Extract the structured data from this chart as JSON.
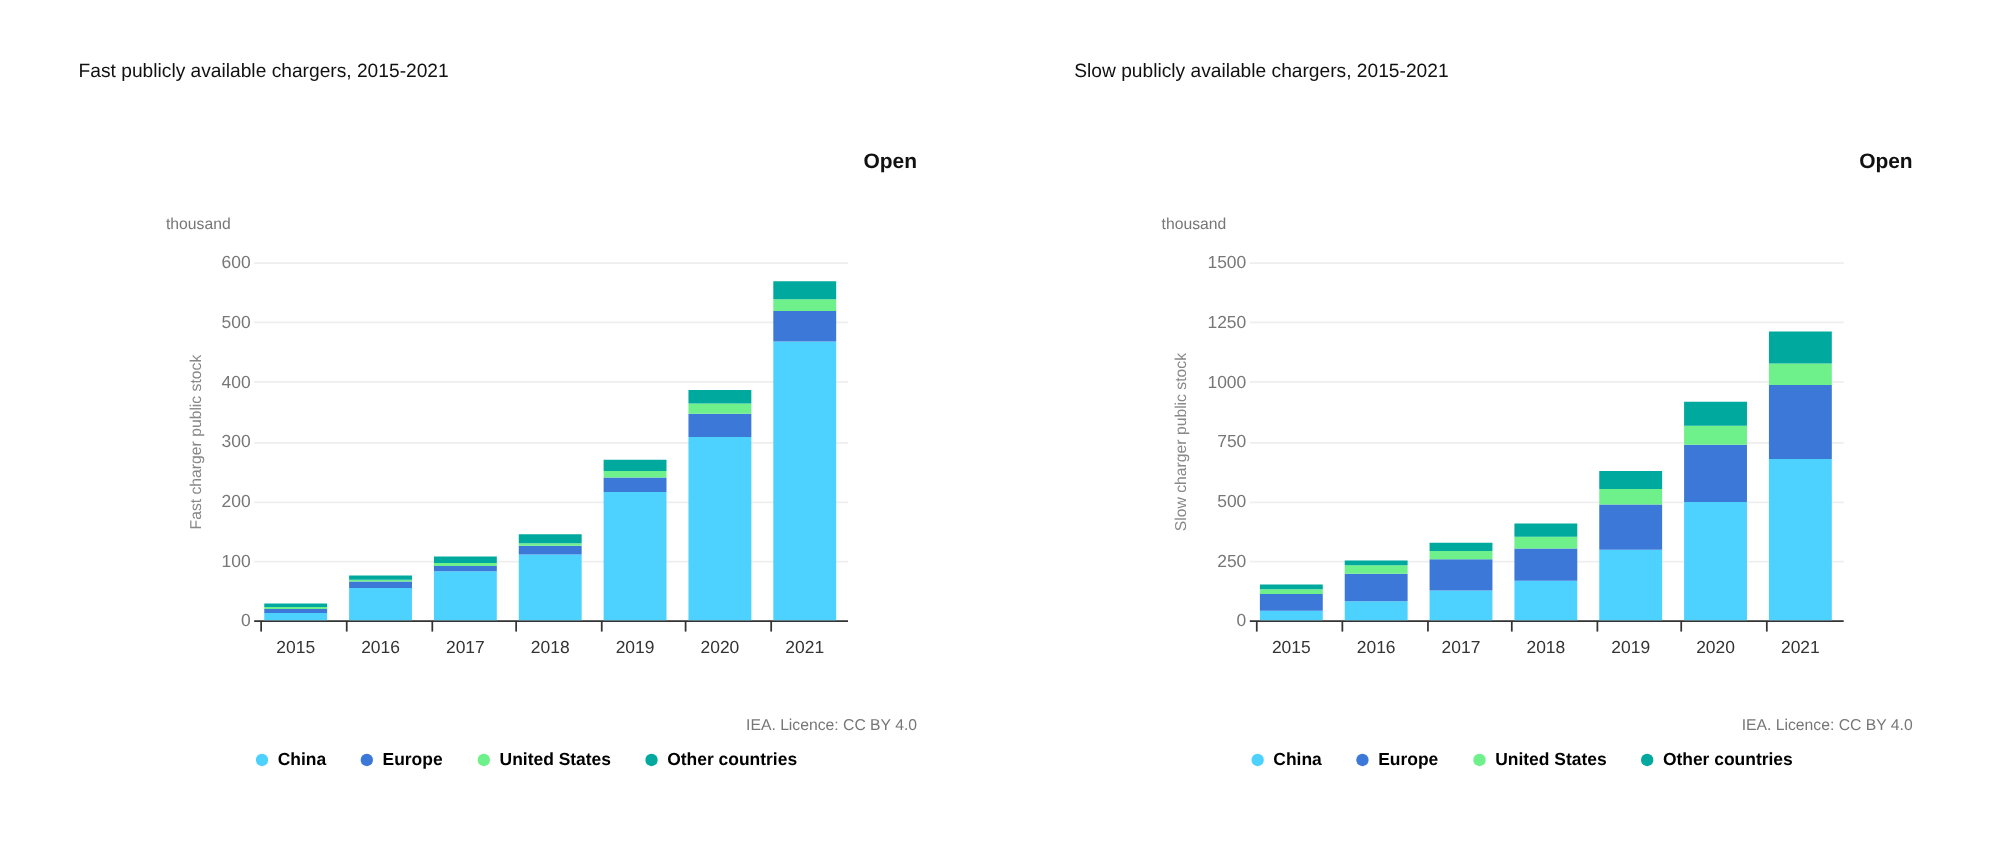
{
  "chart_data": [
    {
      "type": "bar",
      "title": "Fast publicly available chargers, 2015-2021",
      "ylabel": "Fast charger public stock",
      "stacked": true,
      "legend": "bottom",
      "grid": "y",
      "annotations": [
        "thousand",
        "Open",
        "IEA. Licence: CC BY 4.0"
      ],
      "categories": [
        "2015",
        "2016",
        "2017",
        "2018",
        "2019",
        "2020",
        "2021"
      ],
      "ylim": [
        0,
        600
      ],
      "yticks": [
        0,
        100,
        200,
        300,
        400,
        500,
        600
      ],
      "series": [
        {
          "name": "China",
          "color": "#4dd2ff",
          "values": [
            12,
            54,
            82,
            110,
            215,
            307,
            467
          ]
        },
        {
          "name": "Europe",
          "color": "#3c78d8",
          "values": [
            7,
            11,
            9,
            15,
            24,
            39,
            51
          ]
        },
        {
          "name": "United States",
          "color": "#6ef08a",
          "values": [
            3,
            3,
            5,
            4,
            11,
            17,
            20
          ]
        },
        {
          "name": "Other countries",
          "color": "#00a99d",
          "values": [
            6,
            7,
            11,
            15,
            19,
            23,
            30
          ]
        }
      ]
    },
    {
      "type": "bar",
      "title": "Slow publicly available chargers, 2015-2021",
      "ylabel": "Slow charger public stock",
      "stacked": true,
      "legend": "bottom",
      "grid": "y",
      "annotations": [
        "thousand",
        "Open",
        "IEA. Licence: CC BY 4.0"
      ],
      "categories": [
        "2015",
        "2016",
        "2017",
        "2018",
        "2019",
        "2020",
        "2021"
      ],
      "ylim": [
        0,
        1500
      ],
      "yticks": [
        0,
        250,
        500,
        750,
        1000,
        1250,
        1500
      ],
      "series": [
        {
          "name": "China",
          "color": "#4dd2ff",
          "values": [
            40,
            80,
            125,
            165,
            295,
            495,
            675
          ]
        },
        {
          "name": "Europe",
          "color": "#3c78d8",
          "values": [
            70,
            115,
            130,
            135,
            190,
            240,
            310
          ]
        },
        {
          "name": "United States",
          "color": "#6ef08a",
          "values": [
            20,
            35,
            35,
            50,
            65,
            80,
            90
          ]
        },
        {
          "name": "Other countries",
          "color": "#00a99d",
          "values": [
            20,
            20,
            35,
            55,
            75,
            100,
            135
          ]
        }
      ]
    }
  ]
}
